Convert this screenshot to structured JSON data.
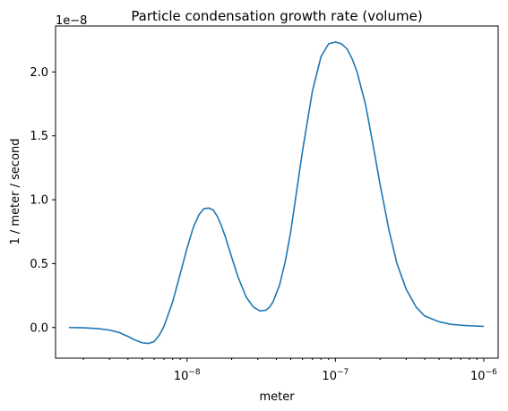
{
  "chart_data": {
    "type": "line",
    "title": "Particle condensation growth rate (volume)",
    "xlabel": "meter",
    "ylabel": "1 / meter / second",
    "x_scale": "log",
    "xlim": [
      1.3e-09,
      1.25e-06
    ],
    "ylim": [
      -2.4e-09,
      2.36e-08
    ],
    "y_offset_label": "1e−8",
    "xticks": [
      {
        "value": 1e-08,
        "base": "10",
        "exp": "−8"
      },
      {
        "value": 1e-07,
        "base": "10",
        "exp": "−7"
      },
      {
        "value": 1e-06,
        "base": "10",
        "exp": "−6"
      }
    ],
    "yticks": [
      {
        "value": 0.0,
        "label": "0.0"
      },
      {
        "value": 5e-09,
        "label": "0.5"
      },
      {
        "value": 1e-08,
        "label": "1.0"
      },
      {
        "value": 1.5e-08,
        "label": "1.5"
      },
      {
        "value": 2e-08,
        "label": "2.0"
      }
    ],
    "grid": false,
    "series": [
      {
        "color": "#1f77b4",
        "x": [
          1.6e-09,
          2e-09,
          2.5e-09,
          3e-09,
          3.5e-09,
          4e-09,
          4.5e-09,
          5e-09,
          5.5e-09,
          6e-09,
          6.5e-09,
          7e-09,
          8e-09,
          9e-09,
          1e-08,
          1.1e-08,
          1.2e-08,
          1.3e-08,
          1.4e-08,
          1.5e-08,
          1.6e-08,
          1.7e-08,
          1.8e-08,
          2e-08,
          2.2e-08,
          2.5e-08,
          2.8e-08,
          3.1e-08,
          3.4e-08,
          3.6e-08,
          3.8e-08,
          4.2e-08,
          4.6e-08,
          5e-08,
          5.5e-08,
          6e-08,
          7e-08,
          8e-08,
          9e-08,
          1e-07,
          1.1e-07,
          1.2e-07,
          1.3e-07,
          1.4e-07,
          1.6e-07,
          1.8e-07,
          2e-07,
          2.3e-07,
          2.6e-07,
          3e-07,
          3.5e-07,
          4e-07,
          5e-07,
          6e-07,
          7e-07,
          8e-07,
          9e-07,
          1e-06
        ],
        "y": [
          0.0,
          -2e-11,
          -8e-11,
          -2e-10,
          -4e-10,
          -7e-10,
          -1e-09,
          -1.2e-09,
          -1.25e-09,
          -1.1e-09,
          -6e-10,
          1e-10,
          2e-09,
          4.2e-09,
          6.2e-09,
          7.8e-09,
          8.8e-09,
          9.3e-09,
          9.35e-09,
          9.2e-09,
          8.7e-09,
          8e-09,
          7.2e-09,
          5.5e-09,
          4e-09,
          2.4e-09,
          1.6e-09,
          1.3e-09,
          1.35e-09,
          1.6e-09,
          2e-09,
          3.3e-09,
          5.2e-09,
          7.5e-09,
          1.08e-08,
          1.38e-08,
          1.85e-08,
          2.12e-08,
          2.22e-08,
          2.235e-08,
          2.22e-08,
          2.18e-08,
          2.1e-08,
          2e-08,
          1.74e-08,
          1.42e-08,
          1.12e-08,
          7.6e-09,
          5e-09,
          3e-09,
          1.6e-09,
          9e-10,
          4.5e-10,
          2.5e-10,
          1.8e-10,
          1.4e-10,
          1.1e-10,
          9e-11
        ]
      }
    ]
  }
}
